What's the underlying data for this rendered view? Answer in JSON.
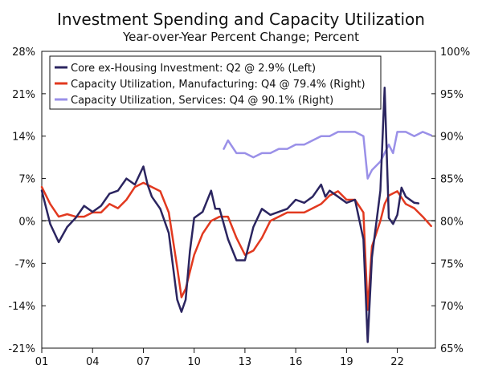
{
  "chart_data": {
    "type": "line",
    "title": "Investment Spending and Capacity Utilization",
    "subtitle": "Year-over-Year Percent Change; Percent",
    "x_ticks": [
      "01",
      "04",
      "07",
      "10",
      "13",
      "16",
      "19",
      "22"
    ],
    "left_axis": {
      "ylim": [
        -21,
        28
      ],
      "ticks": [
        "28%",
        "21%",
        "14%",
        "7%",
        "0%",
        "-7%",
        "-14%",
        "-21%"
      ]
    },
    "right_axis": {
      "ylim": [
        65,
        100
      ],
      "ticks": [
        "100%",
        "95%",
        "90%",
        "85%",
        "80%",
        "75%",
        "70%",
        "65%"
      ]
    },
    "legend": {
      "placement": "top-left"
    },
    "zero_line": true,
    "grid": false,
    "series": [
      {
        "name": "Core ex-Housing Investment: Q2 @ 2.9% (Left)",
        "axis": "left",
        "color": "#2b2560",
        "x": [
          2001.0,
          2001.5,
          2002.0,
          2002.5,
          2003.0,
          2003.5,
          2004.0,
          2004.5,
          2005.0,
          2005.5,
          2006.0,
          2006.5,
          2007.0,
          2007.25,
          2007.5,
          2008.0,
          2008.5,
          2009.0,
          2009.25,
          2009.5,
          2009.75,
          2010.0,
          2010.5,
          2011.0,
          2011.25,
          2011.5,
          2012.0,
          2012.5,
          2013.0,
          2013.5,
          2014.0,
          2014.5,
          2015.0,
          2015.5,
          2016.0,
          2016.5,
          2017.0,
          2017.5,
          2017.75,
          2018.0,
          2018.5,
          2019.0,
          2019.5,
          2020.0,
          2020.25,
          2020.5,
          2021.0,
          2021.25,
          2021.5,
          2021.75,
          2022.0,
          2022.25,
          2022.5,
          2023.0,
          2023.25
        ],
        "y": [
          5,
          -0.5,
          -3.5,
          -1,
          0.5,
          2.5,
          1.5,
          2.5,
          4.5,
          5,
          7,
          6,
          9,
          6,
          4,
          2,
          -2,
          -13,
          -15,
          -13,
          -5,
          0.5,
          1.5,
          5,
          2,
          2,
          -3,
          -6.5,
          -6.5,
          -1,
          2,
          1,
          1.5,
          2,
          3.5,
          3,
          4,
          6,
          4,
          5,
          4,
          3,
          3.5,
          -3,
          -20,
          -6,
          5,
          22,
          0.5,
          -0.5,
          1,
          5.5,
          4,
          3,
          2.9
        ]
      },
      {
        "name": "Capacity Utilization, Manufacturing: Q4 @ 79.4% (Right)",
        "axis": "right",
        "color": "#e2391f",
        "x": [
          2001.0,
          2001.5,
          2002.0,
          2002.5,
          2003.0,
          2003.5,
          2004.0,
          2004.5,
          2005.0,
          2005.5,
          2006.0,
          2006.5,
          2007.0,
          2007.5,
          2008.0,
          2008.5,
          2009.0,
          2009.25,
          2009.5,
          2010.0,
          2010.5,
          2011.0,
          2011.5,
          2012.0,
          2012.5,
          2013.0,
          2013.5,
          2014.0,
          2014.5,
          2015.0,
          2015.5,
          2016.0,
          2016.5,
          2017.0,
          2017.5,
          2018.0,
          2018.5,
          2019.0,
          2019.5,
          2020.0,
          2020.25,
          2020.5,
          2021.0,
          2021.25,
          2021.5,
          2022.0,
          2022.5,
          2023.0,
          2023.5,
          2024.0
        ],
        "y": [
          84,
          82,
          80.5,
          80.8,
          80.5,
          80.5,
          81,
          81,
          82,
          81.5,
          82.5,
          84,
          84.5,
          84,
          83.5,
          81,
          74.5,
          71,
          72,
          76,
          78.5,
          80,
          80.5,
          80.5,
          78,
          76,
          76.5,
          78,
          80,
          80.5,
          81,
          81,
          81,
          81.5,
          82,
          83,
          83.5,
          82.5,
          82.5,
          81,
          69.5,
          77,
          80,
          82,
          83,
          83.5,
          82,
          81.5,
          80.5,
          79.4
        ]
      },
      {
        "name": "Capacity Utilization, Services: Q4 @ 90.1% (Right)",
        "axis": "right",
        "color": "#9a90e8",
        "x": [
          2011.75,
          2012.0,
          2012.5,
          2013.0,
          2013.5,
          2014.0,
          2014.5,
          2015.0,
          2015.5,
          2016.0,
          2016.5,
          2017.0,
          2017.5,
          2018.0,
          2018.5,
          2019.0,
          2019.5,
          2020.0,
          2020.25,
          2020.5,
          2021.0,
          2021.5,
          2021.75,
          2022.0,
          2022.5,
          2023.0,
          2023.5,
          2024.0
        ],
        "y": [
          88.5,
          89.5,
          88,
          88,
          87.5,
          88,
          88,
          88.5,
          88.5,
          89,
          89,
          89.5,
          90,
          90,
          90.5,
          90.5,
          90.5,
          90,
          85,
          86,
          87,
          89,
          88,
          90.5,
          90.5,
          90,
          90.5,
          90.1
        ]
      }
    ]
  }
}
